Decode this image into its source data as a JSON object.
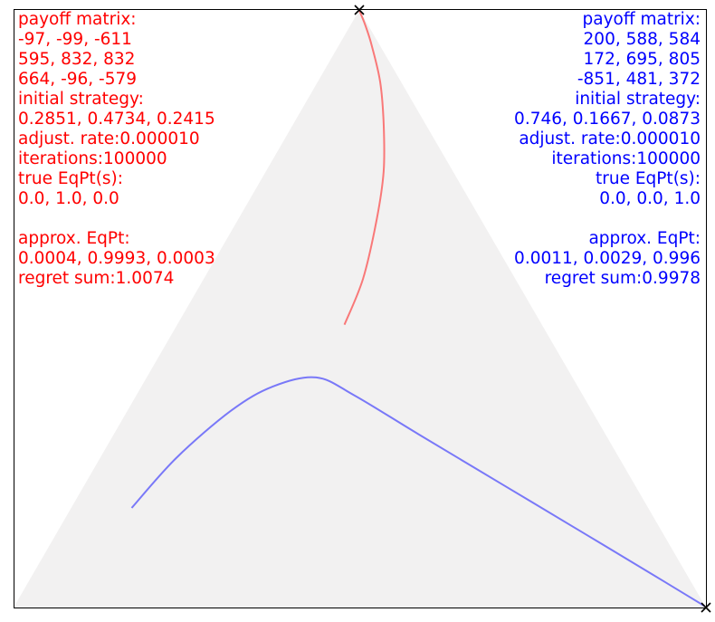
{
  "chart_data": {
    "type": "line",
    "plot_kind": "simplex trajectory (3-strategy replicator dynamics)",
    "series": [
      {
        "name": "",
        "color": "#ff0000",
        "points": [
          [
            0.2851,
            0.4734,
            0.2415
          ],
          [
            0.22,
            0.55,
            0.23
          ],
          [
            0.15,
            0.65,
            0.2
          ],
          [
            0.1,
            0.73,
            0.17
          ],
          [
            0.06,
            0.81,
            0.13
          ],
          [
            0.03,
            0.88,
            0.09
          ],
          [
            0.012,
            0.94,
            0.048
          ],
          [
            0.004,
            0.975,
            0.021
          ],
          [
            0.0004,
            0.9993,
            0.0003
          ]
        ]
      },
      {
        "name": "",
        "color": "#0000ff",
        "points": [
          [
            0.746,
            0.1667,
            0.0873
          ],
          [
            0.64,
            0.25,
            0.11
          ],
          [
            0.52,
            0.33,
            0.15
          ],
          [
            0.44,
            0.37,
            0.19
          ],
          [
            0.37,
            0.385,
            0.245
          ],
          [
            0.33,
            0.355,
            0.315
          ],
          [
            0.27,
            0.29,
            0.44
          ],
          [
            0.19,
            0.205,
            0.605
          ],
          [
            0.11,
            0.12,
            0.77
          ],
          [
            0.04,
            0.045,
            0.915
          ],
          [
            0.0011,
            0.0029,
            0.996
          ]
        ]
      }
    ]
  },
  "colors": {
    "left": "#ff0000",
    "right": "#0000ff",
    "simplex_fill": "#f2f1f1"
  },
  "left_panel": {
    "lines": [
      "payoff matrix:",
      "-97, -99, -611",
      "595, 832, 832",
      "664, -96, -579",
      "initial strategy:",
      "0.2851, 0.4734, 0.2415",
      "adjust. rate:0.000010",
      "iterations:100000",
      "true EqPt(s):",
      "0.0, 1.0, 0.0",
      "",
      "approx. EqPt:",
      "0.0004, 0.9993, 0.0003",
      "regret sum:1.0074"
    ]
  },
  "right_panel": {
    "lines": [
      "payoff matrix:",
      "200, 588, 584",
      "172, 695, 805",
      "-851, 481, 372",
      "initial strategy:",
      "0.746, 0.1667, 0.0873",
      "adjust. rate:0.000010",
      "iterations:100000",
      "true EqPt(s):",
      "0.0, 0.0, 1.0",
      "",
      "approx. EqPt:",
      "0.0011, 0.0029, 0.996",
      "regret sum:0.9978"
    ]
  }
}
